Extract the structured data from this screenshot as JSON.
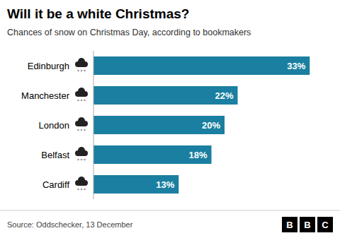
{
  "chart_data": {
    "type": "bar",
    "orientation": "horizontal",
    "title": "Will it be a white Christmas?",
    "subtitle": "Chances of snow on Christmas Day, according to bookmakers",
    "categories": [
      "Edinburgh",
      "Manchester",
      "London",
      "Belfast",
      "Cardiff"
    ],
    "values": [
      33,
      22,
      20,
      18,
      13
    ],
    "value_labels": [
      "33%",
      "22%",
      "20%",
      "18%",
      "13%"
    ],
    "data_labels": true,
    "color": "#1a7fa0",
    "xlim": [
      0,
      36
    ],
    "tick_labels": "y",
    "grid": false,
    "source": "Source: Oddschecker, 13 December",
    "logo": [
      "B",
      "B",
      "C"
    ]
  }
}
